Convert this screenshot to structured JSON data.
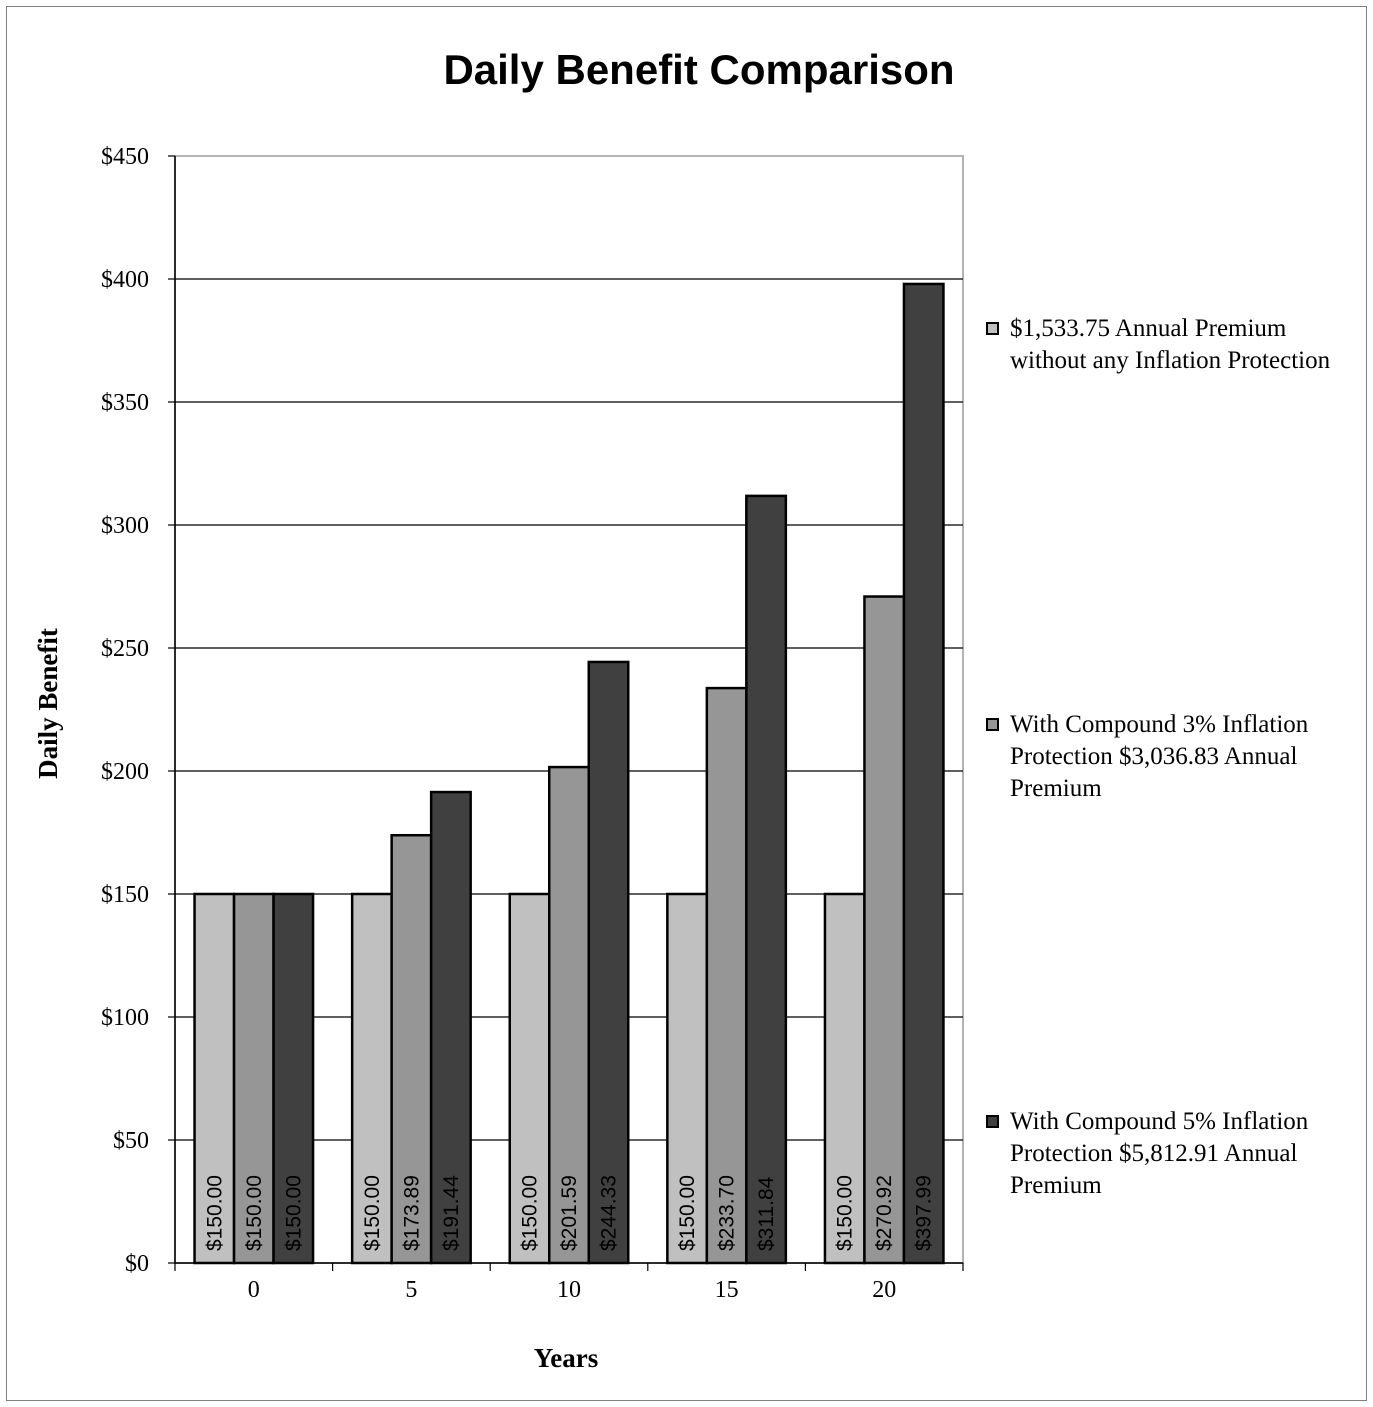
{
  "chart_data": {
    "type": "bar",
    "title": "Daily Benefit Comparison",
    "xlabel": "Years",
    "ylabel": "Daily Benefit",
    "categories": [
      "0",
      "5",
      "10",
      "15",
      "20"
    ],
    "ylim": [
      0,
      450
    ],
    "yticks": [
      0,
      50,
      100,
      150,
      200,
      250,
      300,
      350,
      400,
      450
    ],
    "ytick_labels": [
      "$0",
      "$50",
      "$100",
      "$150",
      "$200",
      "$250",
      "$300",
      "$350",
      "$400",
      "$450"
    ],
    "grid": true,
    "legend_position": "right",
    "series": [
      {
        "name": "$1,533.75 Annual Premium without any Inflation Protection",
        "color": "#c0c0c0",
        "values": [
          150.0,
          150.0,
          150.0,
          150.0,
          150.0
        ],
        "labels": [
          "$150.00",
          "$150.00",
          "$150.00",
          "$150.00",
          "$150.00"
        ]
      },
      {
        "name": "With Compound 3% Inflation Protection $3,036.83 Annual Premium",
        "color": "#969696",
        "values": [
          150.0,
          173.89,
          201.59,
          233.7,
          270.92
        ],
        "labels": [
          "$150.00",
          "$173.89",
          "$201.59",
          "$233.70",
          "$270.92"
        ]
      },
      {
        "name": "With Compound 5% Inflation Protection $5,812.91 Annual Premium",
        "color": "#404040",
        "values": [
          150.0,
          191.44,
          244.33,
          311.84,
          397.99
        ],
        "labels": [
          "$150.00",
          "$191.44",
          "$244.33",
          "$311.84",
          "$397.99"
        ]
      }
    ]
  }
}
